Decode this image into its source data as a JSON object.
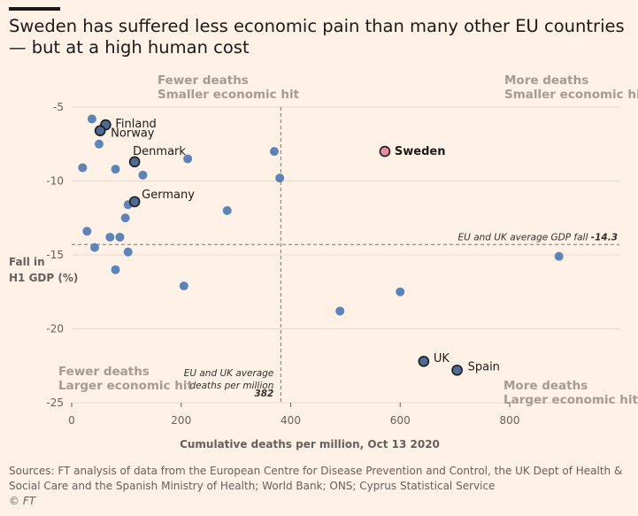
{
  "title": "Sweden has suffered less economic pain than many other EU countries — but at a high human cost",
  "footer": {
    "sources_line1": "Sources: FT analysis of data from the European Centre for Disease Prevention and Control, the UK Dept of Health &",
    "sources_line2": "Social Care and the Spanish Ministry of Health; World Bank; ONS; Cyprus Statistical Service",
    "credit": "© FT"
  },
  "colors": {
    "background": "#fff1e5",
    "point": "#5b85b9",
    "highlight_point": "#e98c9e",
    "labeled_point": "#4e6b95",
    "gridline": "#e6d9ce",
    "reference_line": "#7d7570",
    "quadrant_text": "#a39b94"
  },
  "chart_data": {
    "type": "scatter",
    "xlabel": "Cumulative deaths per million, Oct 13 2020",
    "ylabel": "Fall in H1 GDP (%)",
    "xlim": [
      0,
      900
    ],
    "ylim": [
      -25,
      -4
    ],
    "x_ticks": [
      0,
      200,
      400,
      600,
      800
    ],
    "y_ticks": [
      -5,
      -10,
      -15,
      -20,
      -25
    ],
    "grid": "horizontal",
    "quadrant_labels": {
      "top_left": [
        "Fewer deaths",
        "Smaller economic hit"
      ],
      "top_right": [
        "More deaths",
        "Smaller economic hit"
      ],
      "bottom_left": [
        "Fewer deaths",
        "Larger economic hit"
      ],
      "bottom_right": [
        "More deaths",
        "Larger economic hit"
      ]
    },
    "reference_lines": {
      "vertical": {
        "x": 382,
        "label_lines": [
          "EU and UK average",
          "deaths per million"
        ],
        "value_label": "382"
      },
      "horizontal": {
        "y": -14.3,
        "label": "EU and UK average GDP fall",
        "value_label": "-14.3"
      }
    },
    "points": [
      {
        "label": "Sweden",
        "x": 572,
        "y": -8.0,
        "highlight": true
      },
      {
        "label": "Finland",
        "x": 62,
        "y": -6.2
      },
      {
        "label": "Norway",
        "x": 52,
        "y": -6.6
      },
      {
        "label": "Denmark",
        "x": 115,
        "y": -8.7
      },
      {
        "label": "Germany",
        "x": 115,
        "y": -11.4
      },
      {
        "label": "UK",
        "x": 643,
        "y": -22.2
      },
      {
        "label": "Spain",
        "x": 704,
        "y": -22.8
      },
      {
        "x": 37,
        "y": -5.8
      },
      {
        "x": 50,
        "y": -7.5
      },
      {
        "x": 20,
        "y": -9.1
      },
      {
        "x": 80,
        "y": -9.2
      },
      {
        "x": 130,
        "y": -9.6
      },
      {
        "x": 212,
        "y": -8.5
      },
      {
        "x": 370,
        "y": -8.0
      },
      {
        "x": 380,
        "y": -9.8
      },
      {
        "x": 103,
        "y": -11.6
      },
      {
        "x": 98,
        "y": -12.5
      },
      {
        "x": 284,
        "y": -12.0
      },
      {
        "x": 28,
        "y": -13.4
      },
      {
        "x": 70,
        "y": -13.8
      },
      {
        "x": 88,
        "y": -13.8
      },
      {
        "x": 42,
        "y": -14.5
      },
      {
        "x": 103,
        "y": -14.8
      },
      {
        "x": 80,
        "y": -16.0
      },
      {
        "x": 205,
        "y": -17.1
      },
      {
        "x": 600,
        "y": -17.5
      },
      {
        "x": 490,
        "y": -18.8
      },
      {
        "x": 890,
        "y": -15.1
      }
    ]
  }
}
